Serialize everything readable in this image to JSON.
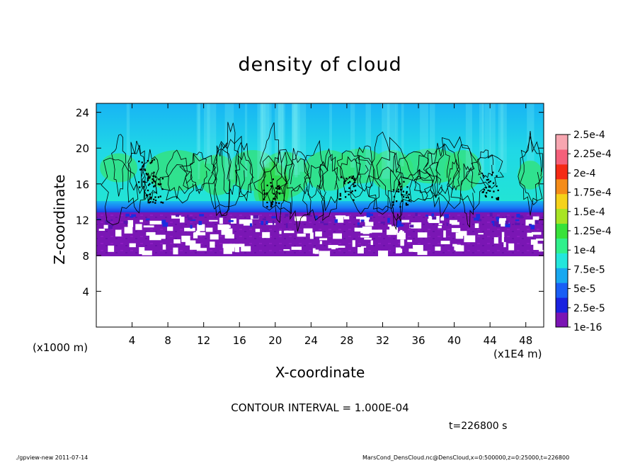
{
  "chart_data": {
    "type": "heatmap",
    "title": "density of cloud",
    "xlabel": "X-coordinate",
    "ylabel": "Z-coordinate",
    "x_unit": "(x1E4 m)",
    "y_unit": "(x1000 m)",
    "xlim": [
      0,
      50
    ],
    "ylim": [
      0,
      25
    ],
    "x_ticks": [
      4,
      8,
      12,
      16,
      20,
      24,
      28,
      32,
      36,
      40,
      44,
      48
    ],
    "y_ticks": [
      4,
      8,
      12,
      16,
      20,
      24
    ],
    "colorbar": {
      "labels": [
        "1e-16",
        "2.5e-5",
        "5e-5",
        "7.5e-5",
        "1e-4",
        "1.25e-4",
        "1.5e-4",
        "1.75e-4",
        "2e-4",
        "2.25e-4",
        "2.5e-4"
      ],
      "colors": [
        "#7b14b4",
        "#1a22e0",
        "#1a5ef5",
        "#18a8f0",
        "#24e6dc",
        "#2ff08c",
        "#38e23a",
        "#a8e424",
        "#f5d21a",
        "#f58c18",
        "#f52a14",
        "#f5607a",
        "#f7a6b0"
      ],
      "position": "right"
    },
    "cloud_layer": {
      "z_bottom": 8,
      "z_top_approx": 25,
      "peak_value_approx": 0.00015
    },
    "contour_interval": 0.0001
  },
  "notes": {
    "contour": "CONTOUR INTERVAL = 1.000E-04",
    "time": "t=226800 s"
  },
  "footer": {
    "left": "./gpview-new  2011-07-14",
    "right": "MarsCond_DensCloud.nc@DensCloud,x=0:500000,z=0:25000,t=226800"
  }
}
